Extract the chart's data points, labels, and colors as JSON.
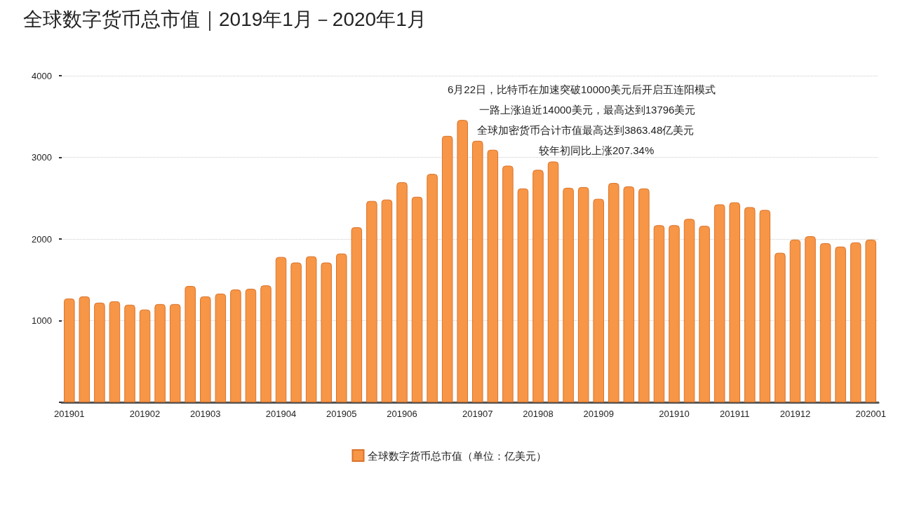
{
  "chart_data": {
    "type": "bar",
    "title": "全球数字货币总市值｜2019年1月－2020年1月",
    "categories": [
      "201901",
      null,
      null,
      null,
      null,
      "201902",
      null,
      null,
      null,
      "201903",
      null,
      null,
      null,
      null,
      "201904",
      null,
      null,
      null,
      "201905",
      null,
      null,
      null,
      "201906",
      null,
      null,
      null,
      null,
      "201907",
      null,
      null,
      null,
      "201908",
      null,
      null,
      null,
      "201909",
      null,
      null,
      null,
      null,
      "201910",
      null,
      null,
      null,
      "201911",
      null,
      null,
      null,
      "201912",
      null,
      null,
      null,
      null,
      "202001"
    ],
    "series": [
      {
        "name": "全球数字货币总市值（单位：亿美元）",
        "color": "#f79646",
        "values": [
          1271,
          1297,
          1220,
          1237,
          1195,
          1136,
          1203,
          1203,
          1424,
          1297,
          1331,
          1381,
          1390,
          1432,
          1780,
          1712,
          1788,
          1712,
          1822,
          2144,
          2466,
          2483,
          2695,
          2517,
          2797,
          3263,
          3458,
          3203,
          3093,
          2898,
          2619,
          2847,
          2949,
          2627,
          2636,
          2492,
          2686,
          2644,
          2619,
          2169,
          2169,
          2246,
          2161,
          2424,
          2449,
          2390,
          2356,
          1831,
          1992,
          2034,
          1949,
          1907,
          1958,
          1992
        ]
      }
    ],
    "ylim": [
      0,
      4000
    ],
    "yticks": [
      {
        "value": 0,
        "label": null
      },
      1000,
      2000,
      3000,
      4000
    ],
    "grid": "y",
    "legend": "bottom",
    "annotations": [
      "6月22日，比特币在加速突破10000美元后开启五连阳模式",
      "一路上涨迫近14000美元，最高达到13796美元",
      "全球加密货币合计市值最高达到3863.48亿美元",
      "较年初同比上涨207.34%"
    ]
  }
}
